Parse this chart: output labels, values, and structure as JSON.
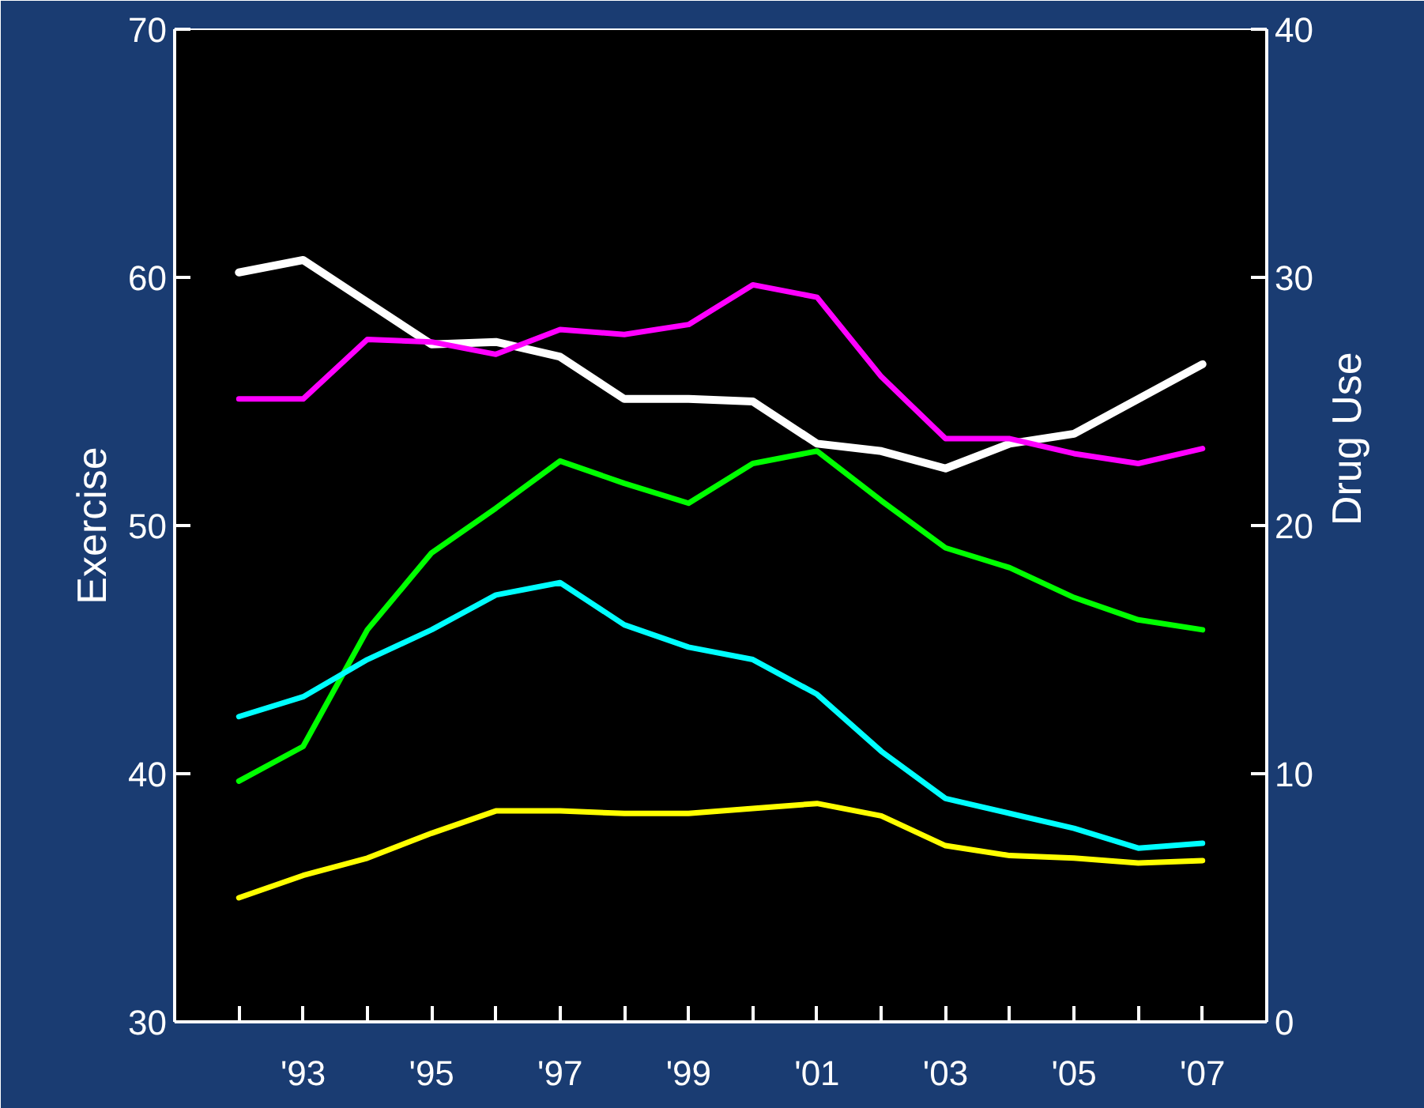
{
  "chart_data": {
    "type": "line",
    "ylabel": "Exercise",
    "y2label": "Drug Use",
    "x": [
      1992,
      1993,
      1994,
      1995,
      1996,
      1997,
      1998,
      1999,
      2000,
      2001,
      2002,
      2003,
      2004,
      2005,
      2006,
      2007
    ],
    "xlim": [
      1991,
      2008
    ],
    "xticks": [
      {
        "value": 1992,
        "label": null
      },
      {
        "value": 1993,
        "label": "'93"
      },
      {
        "value": 1994,
        "label": null
      },
      {
        "value": 1995,
        "label": "'95"
      },
      {
        "value": 1996,
        "label": null
      },
      {
        "value": 1997,
        "label": "'97"
      },
      {
        "value": 1998,
        "label": null
      },
      {
        "value": 1999,
        "label": "'99"
      },
      {
        "value": 2000,
        "label": null
      },
      {
        "value": 2001,
        "label": "'01"
      },
      {
        "value": 2002,
        "label": null
      },
      {
        "value": 2003,
        "label": "'03"
      },
      {
        "value": 2004,
        "label": null
      },
      {
        "value": 2005,
        "label": "'05"
      },
      {
        "value": 2006,
        "label": null
      },
      {
        "value": 2007,
        "label": "'07"
      }
    ],
    "ylim": [
      30,
      70
    ],
    "yticks": [
      30,
      40,
      50,
      60,
      70
    ],
    "y2lim": [
      0,
      40
    ],
    "y2ticks": [
      0,
      10,
      20,
      30,
      40
    ],
    "grid": false,
    "marker": "none",
    "line_style": "solid",
    "series": [
      {
        "color": "#ffffff",
        "values": [
          60.2,
          60.7,
          59.0,
          57.3,
          57.4,
          56.8,
          55.1,
          55.1,
          55.0,
          53.3,
          53.0,
          52.3,
          53.3,
          53.7,
          55.1,
          56.5
        ]
      },
      {
        "color": "#ff00ff",
        "axis": "y2",
        "values": [
          25.1,
          25.1,
          27.5,
          27.4,
          26.9,
          27.9,
          27.7,
          28.1,
          29.7,
          29.2,
          26.0,
          23.5,
          23.5,
          22.9,
          22.5,
          23.1
        ]
      },
      {
        "color": "#00ff00",
        "axis": "y2",
        "values": [
          9.7,
          11.1,
          15.8,
          18.9,
          20.7,
          22.6,
          21.7,
          20.9,
          22.5,
          23.0,
          21.0,
          19.1,
          18.3,
          17.1,
          16.2,
          15.8
        ]
      },
      {
        "color": "#00ffff",
        "axis": "y2",
        "values": [
          12.3,
          13.1,
          14.6,
          15.8,
          17.2,
          17.7,
          16.0,
          15.1,
          14.6,
          13.2,
          10.9,
          9.0,
          8.4,
          7.8,
          7.0,
          7.2
        ]
      },
      {
        "color": "#ffff00",
        "axis": "y2",
        "values": [
          5.0,
          5.9,
          6.6,
          7.6,
          8.5,
          8.5,
          8.4,
          8.4,
          8.6,
          8.8,
          8.3,
          7.1,
          6.7,
          6.6,
          6.4,
          6.5
        ]
      }
    ]
  }
}
